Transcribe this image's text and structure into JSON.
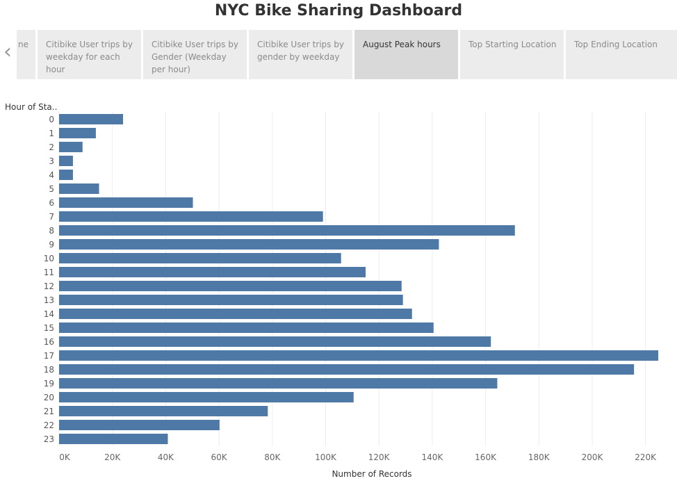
{
  "dashboard": {
    "title": "NYC Bike Sharing Dashboard"
  },
  "tabs": [
    {
      "label": "ne",
      "active": false
    },
    {
      "label": "Citibike User trips by weekday for each hour",
      "active": false
    },
    {
      "label": "Citibike User trips by Gender (Weekday per hour)",
      "active": false
    },
    {
      "label": "Citibike User trips by gender by weekday",
      "active": false
    },
    {
      "label": "August Peak hours",
      "active": true
    },
    {
      "label": "Top Starting Location",
      "active": false
    },
    {
      "label": "Top Ending Location",
      "active": false
    }
  ],
  "chart_data": {
    "type": "bar",
    "orientation": "horizontal",
    "ylabel": "Hour of Sta..",
    "xlabel": "Number of Records",
    "categories": [
      "0",
      "1",
      "2",
      "3",
      "4",
      "5",
      "6",
      "7",
      "8",
      "9",
      "10",
      "11",
      "12",
      "13",
      "14",
      "15",
      "16",
      "17",
      "18",
      "19",
      "20",
      "21",
      "22",
      "23"
    ],
    "values": [
      24000,
      13800,
      8800,
      5200,
      5200,
      15000,
      50200,
      99000,
      171000,
      142500,
      105800,
      115000,
      128500,
      129000,
      132400,
      140500,
      162000,
      224800,
      215700,
      164400,
      110500,
      78300,
      60200,
      40800
    ],
    "xlim": [
      0,
      230000
    ],
    "xticks": [
      0,
      20000,
      40000,
      60000,
      80000,
      100000,
      120000,
      140000,
      160000,
      180000,
      200000,
      220000
    ],
    "xtick_labels": [
      "0K",
      "20K",
      "40K",
      "60K",
      "80K",
      "100K",
      "120K",
      "140K",
      "160K",
      "180K",
      "200K",
      "220K"
    ],
    "bar_color": "#4e79a7",
    "grid": true
  }
}
